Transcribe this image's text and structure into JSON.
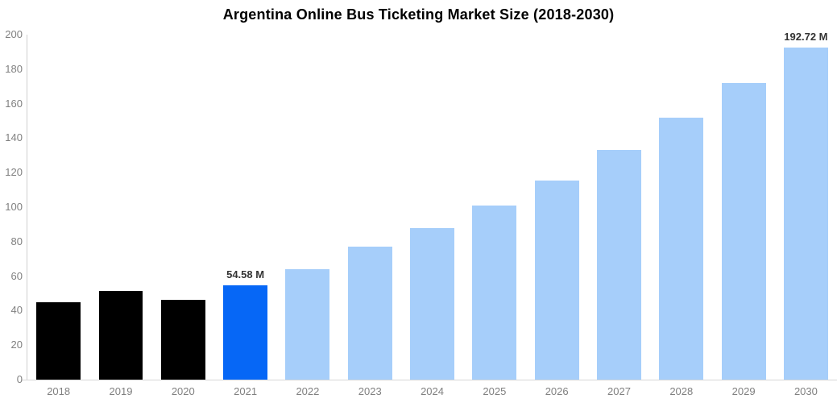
{
  "chart_data": {
    "type": "bar",
    "title": "Argentina Online Bus Ticketing Market Size (2018-2030)",
    "categories": [
      "2018",
      "2019",
      "2020",
      "2021",
      "2022",
      "2023",
      "2024",
      "2025",
      "2026",
      "2027",
      "2028",
      "2029",
      "2030"
    ],
    "values": [
      45,
      51.2,
      46.5,
      54.58,
      64,
      77,
      88,
      101,
      115.5,
      133,
      152,
      172,
      192.72
    ],
    "point_labels": [
      "",
      "",
      "",
      "54.58 M",
      "",
      "",
      "",
      "",
      "",
      "",
      "",
      "",
      "192.72 M"
    ],
    "point_color_roles": [
      "black",
      "black",
      "black",
      "highlight",
      "light",
      "light",
      "light",
      "light",
      "light",
      "light",
      "light",
      "light",
      "light"
    ],
    "xlabel": "",
    "ylabel": "",
    "ylim": [
      0,
      200
    ],
    "yticks": [
      0,
      20,
      40,
      60,
      80,
      100,
      120,
      140,
      160,
      180,
      200
    ],
    "grid": false,
    "legend": "none",
    "colors": {
      "black_bar": "#000000",
      "highlight_bar": "#0667f6",
      "light_bar": "#a6cefa",
      "axis_line": "#cfcfcf",
      "tick_label": "#808080",
      "value_label": "#333333",
      "title_text": "#000000",
      "background": "#ffffff"
    }
  }
}
